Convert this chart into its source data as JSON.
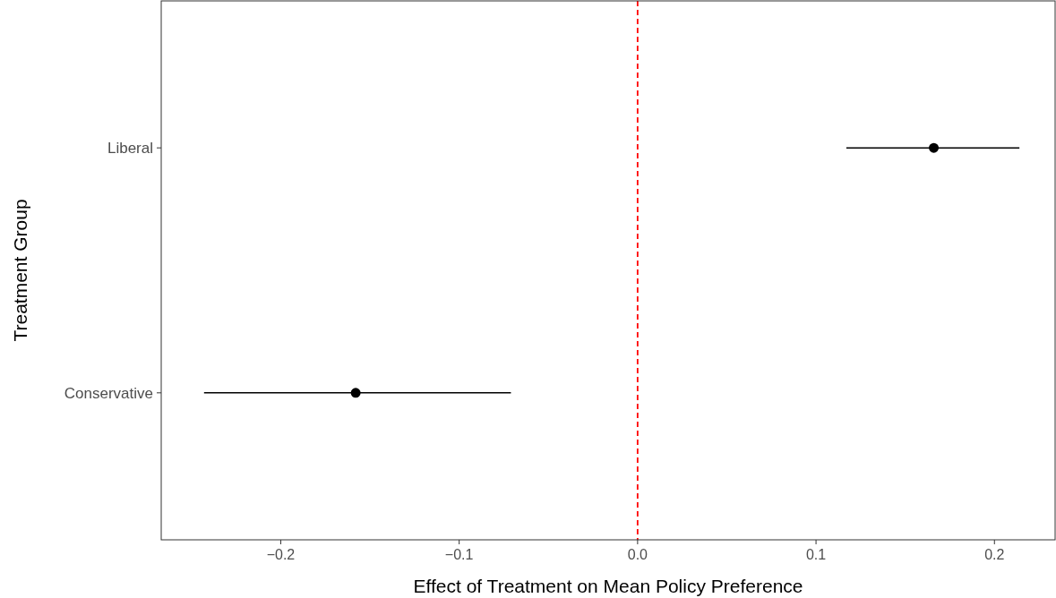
{
  "chart_data": {
    "type": "scatter",
    "orientation": "horizontal",
    "xlabel": "Effect of Treatment on Mean Policy Preference",
    "ylabel": "Treatment Group",
    "categories": [
      "Liberal",
      "Conservative"
    ],
    "series": [
      {
        "color": "#000000",
        "values": [
          0.166,
          -0.158
        ],
        "errors": [
          [
            0.117,
            0.214
          ],
          [
            -0.243,
            -0.071
          ]
        ]
      }
    ],
    "xlim": [
      -0.267,
      0.234
    ],
    "xticks": [
      {
        "value": -0.2,
        "label": "−0.2"
      },
      {
        "value": -0.1,
        "label": "−0.1"
      },
      {
        "value": 0,
        "label": "0.0"
      },
      {
        "value": 0.1,
        "label": "0.1"
      },
      {
        "value": 0.2,
        "label": "0.2"
      }
    ],
    "ref_lines": [
      {
        "axis": "x",
        "value": 0,
        "color": "#ff0000",
        "line_style": "dashed"
      }
    ],
    "marker": "circle",
    "grid": false
  }
}
